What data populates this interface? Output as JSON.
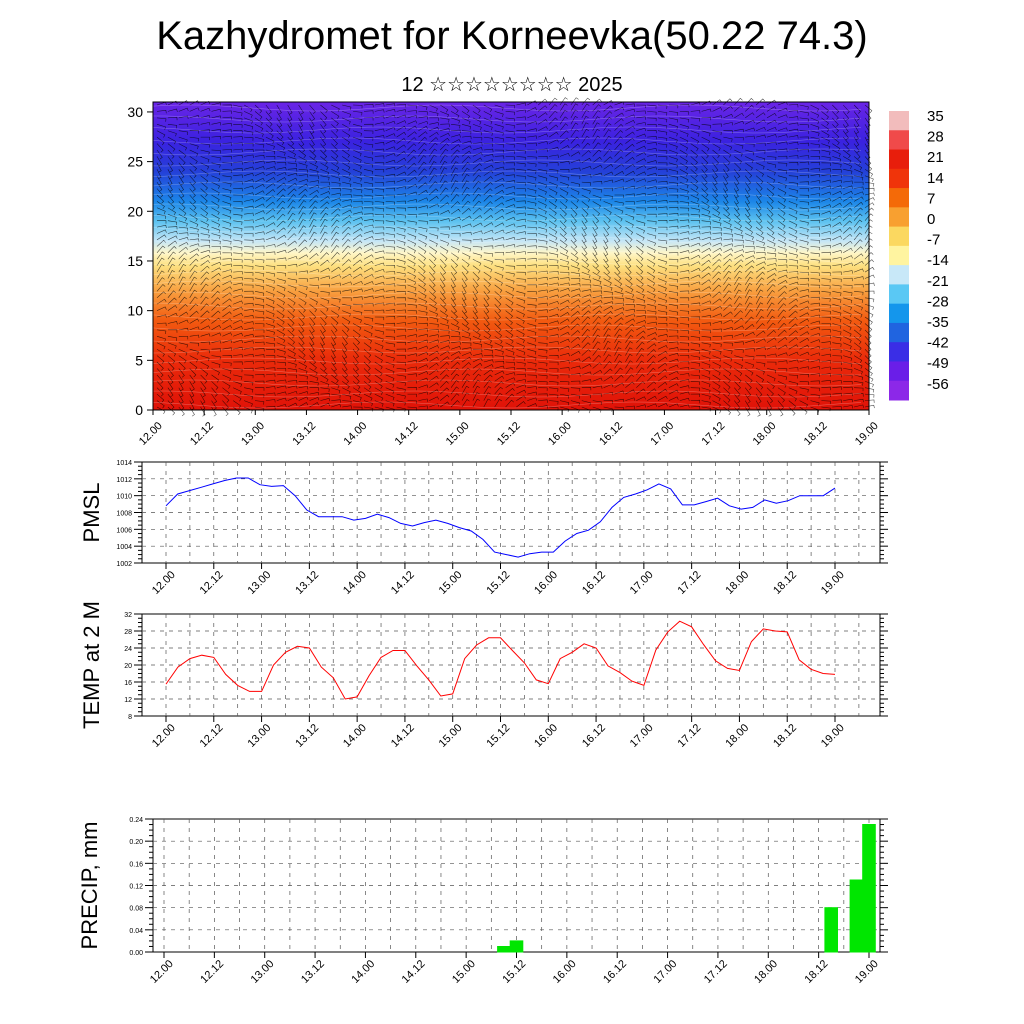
{
  "title": "Kazhydromet for Korneevka(50.22 74.3)",
  "subtitle": "12 ☆☆☆☆☆☆☆☆ 2025",
  "time_labels": [
    "12.00",
    "12.12",
    "13.00",
    "13.12",
    "14.00",
    "14.12",
    "15.00",
    "15.12",
    "16.00",
    "16.12",
    "17.00",
    "17.12",
    "18.00",
    "18.12",
    "19.00"
  ],
  "chart_data": [
    {
      "type": "heatmap",
      "name": "cross-section",
      "ylim": [
        0,
        31
      ],
      "y_ticks": [
        0,
        5,
        10,
        15,
        20,
        25,
        30
      ],
      "colorbar_labels": [
        "35",
        "28",
        "21",
        "14",
        "7",
        "0",
        "-7",
        "-14",
        "-21",
        "-28",
        "-35",
        "-42",
        "-49",
        "-56"
      ],
      "colorbar_colors": [
        "#f2bcbc",
        "#f04a4a",
        "#e81e0c",
        "#f0340a",
        "#f46a08",
        "#f8a030",
        "#fbd860",
        "#fff4a0",
        "#c8e8f8",
        "#5ac8f4",
        "#1496ec",
        "#2064e0",
        "#3a2ee6",
        "#6a1ee8",
        "#8c28e8"
      ]
    },
    {
      "type": "line",
      "ylabel": "PMSL",
      "ylim": [
        1002,
        1014
      ],
      "y_ticks": [
        1002,
        1004,
        1006,
        1008,
        1010,
        1012,
        1014
      ],
      "color": "#0000ff",
      "values": [
        1008.8,
        1010.2,
        1010.6,
        1011.0,
        1011.4,
        1011.8,
        1012.1,
        1012.1,
        1011.3,
        1011.1,
        1011.2,
        1010.0,
        1008.3,
        1007.5,
        1007.5,
        1007.5,
        1007.1,
        1007.3,
        1007.8,
        1007.4,
        1006.7,
        1006.4,
        1006.8,
        1007.1,
        1006.7,
        1006.2,
        1005.8,
        1004.8,
        1003.3,
        1003.0,
        1002.7,
        1003.1,
        1003.3,
        1003.3,
        1004.6,
        1005.5,
        1005.9,
        1006.9,
        1008.6,
        1009.8,
        1010.2,
        1010.7,
        1011.4,
        1010.8,
        1008.9,
        1008.9,
        1009.3,
        1009.7,
        1008.8,
        1008.4,
        1008.6,
        1009.5,
        1009.1,
        1009.4,
        1010.0,
        1010.0,
        1010.0,
        1010.9
      ]
    },
    {
      "type": "line",
      "ylabel": "TEMP at 2 M",
      "ylim": [
        8,
        32
      ],
      "y_ticks": [
        8,
        12,
        16,
        20,
        24,
        28,
        32
      ],
      "color": "#ff0000",
      "values": [
        15.5,
        19.5,
        21.5,
        22.3,
        21.8,
        17.8,
        15.2,
        13.8,
        13.8,
        20.0,
        23.0,
        24.4,
        24.0,
        19.5,
        17.0,
        12.0,
        12.5,
        17.5,
        21.8,
        23.4,
        23.4,
        19.8,
        16.5,
        12.7,
        13.2,
        21.5,
        24.7,
        26.4,
        26.4,
        23.4,
        20.5,
        16.5,
        15.6,
        21.5,
        23.0,
        25.0,
        24.0,
        19.8,
        18.2,
        16.2,
        15.2,
        23.5,
        27.8,
        30.3,
        29.0,
        24.8,
        21.0,
        19.2,
        18.7,
        25.5,
        28.5,
        28.0,
        27.8,
        21.2,
        19.0,
        18.0,
        17.8
      ]
    },
    {
      "type": "bar",
      "ylabel": "PRECIP, mm",
      "ylim": [
        0,
        0.24
      ],
      "y_ticks": [
        "0.00",
        "0.04",
        "0.08",
        "0.12",
        "0.16",
        "0.20",
        "0.24"
      ],
      "color": "#00e600",
      "bars": [
        {
          "x": 15.375,
          "value": 0.01
        },
        {
          "x": 15.5,
          "value": 0.02
        },
        {
          "x": 18.625,
          "value": 0.08
        },
        {
          "x": 18.875,
          "value": 0.13
        },
        {
          "x": 19.0,
          "value": 0.23
        }
      ]
    }
  ]
}
